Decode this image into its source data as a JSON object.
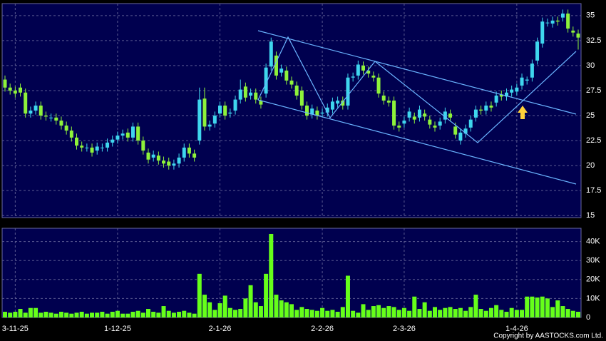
{
  "chart_data": [
    {
      "type": "candlestick",
      "grid": true,
      "up_color": "#3fd6ee",
      "down_color": "#8ef23a",
      "ylim": [
        14.8,
        36.2
      ],
      "yticks": [
        15,
        17.5,
        20,
        22.5,
        25,
        27.5,
        30,
        32.5,
        35
      ],
      "open": [
        28.6,
        27.8,
        27.5,
        27.8,
        27.3,
        25.2,
        25.5,
        26.0,
        25.0,
        24.8,
        24.8,
        24.5,
        24.0,
        23.5,
        22.8,
        22.0,
        21.8,
        21.8,
        21.5,
        21.8,
        21.8,
        22.3,
        22.6,
        23.0,
        23.3,
        22.8,
        23.9,
        22.5,
        21.3,
        20.8,
        21.0,
        20.5,
        20.4,
        20.0,
        20.2,
        20.8,
        21.8,
        21.2,
        22.5,
        26.7,
        23.9,
        24.2,
        25.2,
        26.0,
        25.2,
        25.5,
        26.6,
        27.9,
        27.0,
        27.3,
        26.5,
        27.2,
        29.9,
        31.0,
        29.3,
        29.5,
        28.5,
        28.0,
        27.5,
        26.0,
        25.1,
        25.5,
        25.2,
        25.3,
        25.6,
        26.2,
        26.5,
        26.0,
        28.8,
        29.0,
        30.0,
        29.5,
        29.0,
        28.8,
        27.0,
        26.5,
        26.5,
        24.0,
        24.2,
        24.8,
        24.9,
        24.8,
        25.2,
        24.6,
        24.0,
        24.0,
        24.6,
        25.2,
        23.9,
        22.5,
        23.2,
        23.8,
        24.8,
        25.6,
        25.5,
        26.0,
        26.3,
        27.1,
        26.9,
        27.3,
        27.4,
        28.0,
        28.5,
        28.8,
        30.5,
        32.2,
        34.3,
        34.2,
        34.5,
        34.8,
        35.2,
        33.5,
        33.2
      ],
      "high": [
        29.0,
        28.2,
        27.9,
        28.2,
        27.7,
        25.9,
        26.4,
        26.4,
        25.4,
        25.2,
        25.2,
        24.9,
        24.4,
        23.9,
        23.2,
        22.4,
        22.2,
        22.2,
        22.3,
        22.2,
        22.7,
        23.0,
        23.4,
        23.6,
        23.7,
        24.3,
        24.3,
        22.9,
        21.7,
        21.5,
        21.4,
        20.9,
        20.8,
        20.6,
        21.2,
        22.2,
        22.2,
        21.6,
        27.8,
        27.8,
        24.5,
        25.4,
        26.4,
        26.4,
        25.7,
        27.0,
        28.6,
        28.3,
        27.7,
        27.7,
        26.9,
        30.2,
        32.8,
        31.4,
        30.1,
        29.9,
        28.9,
        28.4,
        27.9,
        26.4,
        26.1,
        25.9,
        25.7,
        26.2,
        26.8,
        26.9,
        26.9,
        29.2,
        29.3,
        30.5,
        30.4,
        29.9,
        29.4,
        29.2,
        27.4,
        26.9,
        26.9,
        24.4,
        24.9,
        25.8,
        25.3,
        26.0,
        25.6,
        25.0,
        24.4,
        24.8,
        25.8,
        25.6,
        24.3,
        23.7,
        24.1,
        25.0,
        26.0,
        26.0,
        26.4,
        26.4,
        27.4,
        27.5,
        27.7,
        28.0,
        28.2,
        29.2,
        28.9,
        30.6,
        32.8,
        34.8,
        34.7,
        34.9,
        34.9,
        35.6,
        35.6,
        33.9,
        33.6
      ],
      "low": [
        27.4,
        27.1,
        26.8,
        26.9,
        24.8,
        24.8,
        25.1,
        24.6,
        24.5,
        24.4,
        24.1,
        23.6,
        23.1,
        22.4,
        21.6,
        21.4,
        21.4,
        20.9,
        21.1,
        21.4,
        21.4,
        21.9,
        22.2,
        22.6,
        22.4,
        22.4,
        22.1,
        21.1,
        20.2,
        20.4,
        20.1,
        19.8,
        19.6,
        19.6,
        19.8,
        20.4,
        20.8,
        20.4,
        22.1,
        23.5,
        23.5,
        23.8,
        24.8,
        24.6,
        24.8,
        25.1,
        26.2,
        26.4,
        26.6,
        26.2,
        25.7,
        26.8,
        29.5,
        28.6,
        28.9,
        28.1,
        27.7,
        26.6,
        25.6,
        24.6,
        24.7,
        24.6,
        24.8,
        24.9,
        25.2,
        25.8,
        25.6,
        25.6,
        28.4,
        28.6,
        29.1,
        28.8,
        28.4,
        26.8,
        26.1,
        25.9,
        23.6,
        23.4,
        23.8,
        24.4,
        24.2,
        24.4,
        24.5,
        23.7,
        23.4,
        23.6,
        24.2,
        24.4,
        22.7,
        22.1,
        22.8,
        23.4,
        24.4,
        25.1,
        25.1,
        25.4,
        25.9,
        26.5,
        26.5,
        26.9,
        27.0,
        27.6,
        28.1,
        28.4,
        30.1,
        31.8,
        33.9,
        33.8,
        34.0,
        34.4,
        33.3,
        32.9,
        31.6
      ],
      "close": [
        27.8,
        27.5,
        27.2,
        27.3,
        25.2,
        25.5,
        26.0,
        25.0,
        24.9,
        24.8,
        24.5,
        24.0,
        23.5,
        22.8,
        22.0,
        21.8,
        21.8,
        21.3,
        21.9,
        21.8,
        22.3,
        22.6,
        23.0,
        23.2,
        22.8,
        23.9,
        22.5,
        21.5,
        20.6,
        21.1,
        20.5,
        20.2,
        20.0,
        20.2,
        20.8,
        21.8,
        21.2,
        20.8,
        26.6,
        23.9,
        24.1,
        25.0,
        26.0,
        25.0,
        25.3,
        26.6,
        27.6,
        26.8,
        27.3,
        26.6,
        26.1,
        29.8,
        32.4,
        29.0,
        29.7,
        28.5,
        28.1,
        27.0,
        26.0,
        25.0,
        25.7,
        25.0,
        25.3,
        25.8,
        26.4,
        26.5,
        26.0,
        28.8,
        28.9,
        30.1,
        29.5,
        29.2,
        28.8,
        27.2,
        26.5,
        26.3,
        24.0,
        23.8,
        24.5,
        25.4,
        24.6,
        25.6,
        24.9,
        24.1,
        23.8,
        24.4,
        25.4,
        24.8,
        23.1,
        23.3,
        23.7,
        24.6,
        25.6,
        25.5,
        26.0,
        25.8,
        27.0,
        26.9,
        27.3,
        27.6,
        27.8,
        28.8,
        28.6,
        30.2,
        32.4,
        34.4,
        34.3,
        34.5,
        34.4,
        35.2,
        33.7,
        33.3,
        32.8
      ]
    },
    {
      "type": "bar",
      "grid": true,
      "color": "#66ff1a",
      "ylim": [
        0,
        47000
      ],
      "yticks": [
        0,
        {
          "value": 10000,
          "label": "10K"
        },
        {
          "value": 20000,
          "label": "20K"
        },
        {
          "value": 30000,
          "label": "30K"
        },
        {
          "value": 40000,
          "label": "40K"
        }
      ],
      "categories": [
        null,
        null,
        "3-11-25",
        null,
        null,
        null,
        null,
        null,
        null,
        null,
        null,
        null,
        null,
        null,
        null,
        null,
        null,
        null,
        null,
        null,
        null,
        null,
        "1-12-25",
        null,
        null,
        null,
        null,
        null,
        null,
        null,
        null,
        null,
        null,
        null,
        null,
        null,
        null,
        null,
        null,
        null,
        null,
        null,
        "2-1-26",
        null,
        null,
        null,
        null,
        null,
        null,
        null,
        null,
        null,
        null,
        null,
        null,
        null,
        null,
        null,
        null,
        null,
        null,
        null,
        "2-2-26",
        null,
        null,
        null,
        null,
        null,
        null,
        null,
        null,
        null,
        null,
        null,
        null,
        null,
        null,
        null,
        "2-3-26",
        null,
        null,
        null,
        null,
        null,
        null,
        null,
        null,
        null,
        null,
        null,
        null,
        null,
        null,
        null,
        null,
        null,
        null,
        null,
        null,
        null,
        "1-4-26",
        null,
        null,
        null,
        null,
        null,
        null,
        null,
        null,
        null,
        null,
        null,
        null
      ],
      "values": [
        3000,
        2500,
        3000,
        4500,
        2500,
        5000,
        5000,
        2500,
        3000,
        2500,
        2000,
        3000,
        2500,
        2000,
        2500,
        3000,
        2000,
        2500,
        2500,
        3000,
        2000,
        3000,
        3500,
        2000,
        2000,
        3000,
        3500,
        2500,
        4500,
        3000,
        2500,
        6000,
        3500,
        2500,
        3000,
        3500,
        2500,
        2000,
        23000,
        12000,
        8000,
        4000,
        7500,
        11500,
        5000,
        4000,
        4500,
        10000,
        17000,
        8000,
        6000,
        23000,
        44000,
        12000,
        9000,
        8000,
        7000,
        4000,
        5500,
        4500,
        4000,
        3500,
        5000,
        3500,
        4000,
        3000,
        5500,
        22000,
        3500,
        2500,
        7000,
        4000,
        6000,
        6500,
        5000,
        6000,
        5500,
        4000,
        5000,
        3500,
        11000,
        4500,
        8000,
        3500,
        5500,
        4000,
        5000,
        5500,
        4500,
        5000,
        3500,
        5500,
        12000,
        4500,
        3500,
        5000,
        6500,
        4000,
        3000,
        5000,
        4000,
        4000,
        11000,
        11000,
        10500,
        11000,
        10000,
        5500,
        9000,
        6000,
        4500,
        3500,
        3000
      ]
    }
  ],
  "footer": {
    "copyright": "Copyright by AASTOCKS.com Ltd."
  }
}
